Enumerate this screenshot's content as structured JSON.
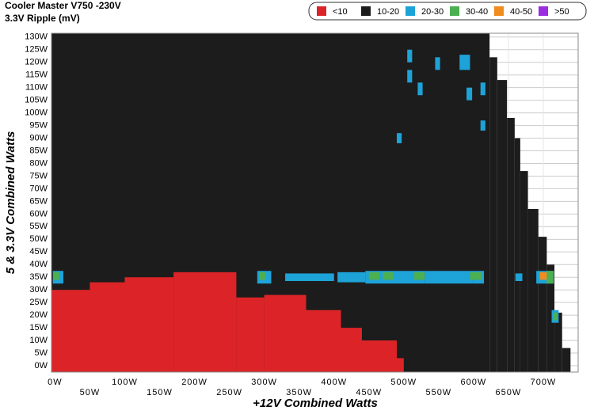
{
  "chart_data": {
    "type": "heatmap",
    "title": "Cooler Master V750 -230V",
    "subtitle": "3.3V Ripple (mV)",
    "x_label": "+12V Combined Watts",
    "y_label": "5 & 3.3V Combined Watts",
    "xlim": [
      -5,
      750
    ],
    "ylim": [
      -2.5,
      131.5
    ],
    "grid": true,
    "xticks": [
      {
        "value": 0,
        "label": "0W"
      },
      {
        "value": 50,
        "label": "50W"
      },
      {
        "value": 100,
        "label": "100W"
      },
      {
        "value": 150,
        "label": "150W"
      },
      {
        "value": 200,
        "label": "200W"
      },
      {
        "value": 250,
        "label": "250W"
      },
      {
        "value": 300,
        "label": "300W"
      },
      {
        "value": 350,
        "label": "350W"
      },
      {
        "value": 400,
        "label": "400W"
      },
      {
        "value": 450,
        "label": "450W"
      },
      {
        "value": 500,
        "label": "500W"
      },
      {
        "value": 550,
        "label": "550W"
      },
      {
        "value": 600,
        "label": "600W"
      },
      {
        "value": 650,
        "label": "650W"
      },
      {
        "value": 700,
        "label": "700W"
      }
    ],
    "yticks": [
      {
        "value": 0,
        "label": "0W"
      },
      {
        "value": 5,
        "label": "5W"
      },
      {
        "value": 10,
        "label": "10W"
      },
      {
        "value": 15,
        "label": "15W"
      },
      {
        "value": 20,
        "label": "20W"
      },
      {
        "value": 25,
        "label": "25W"
      },
      {
        "value": 30,
        "label": "30W"
      },
      {
        "value": 35,
        "label": "35W"
      },
      {
        "value": 40,
        "label": "40W"
      },
      {
        "value": 45,
        "label": "45W"
      },
      {
        "value": 50,
        "label": "50W"
      },
      {
        "value": 55,
        "label": "55W"
      },
      {
        "value": 60,
        "label": "60W"
      },
      {
        "value": 65,
        "label": "65W"
      },
      {
        "value": 70,
        "label": "70W"
      },
      {
        "value": 75,
        "label": "75W"
      },
      {
        "value": 80,
        "label": "80W"
      },
      {
        "value": 85,
        "label": "85W"
      },
      {
        "value": 90,
        "label": "90W"
      },
      {
        "value": 95,
        "label": "95W"
      },
      {
        "value": 100,
        "label": "100W"
      },
      {
        "value": 105,
        "label": "105W"
      },
      {
        "value": 110,
        "label": "110W"
      },
      {
        "value": 115,
        "label": "115W"
      },
      {
        "value": 120,
        "label": "120W"
      },
      {
        "value": 125,
        "label": "125W"
      },
      {
        "value": 130,
        "label": "130W"
      }
    ],
    "series": [
      {
        "name": "10-20",
        "color": "#1c1c1c",
        "rects": [
          [
            -5,
            623,
            -2.5,
            131.5
          ],
          [
            623,
            634,
            -2.5,
            122
          ],
          [
            634,
            648,
            -2.5,
            113
          ],
          [
            648,
            659,
            -2.5,
            98
          ],
          [
            659,
            667,
            -2.5,
            90
          ],
          [
            667,
            678,
            -2.5,
            77
          ],
          [
            678,
            693,
            -2.5,
            62
          ],
          [
            693,
            705,
            -2.5,
            51
          ],
          [
            705,
            716,
            -2.5,
            40
          ],
          [
            716,
            727,
            -2.5,
            21
          ],
          [
            727,
            739,
            -2.5,
            7
          ]
        ]
      },
      {
        "name": "<10",
        "color": "#dc2428",
        "rects": [
          [
            -5,
            50,
            -2.5,
            30
          ],
          [
            50,
            100,
            -2.5,
            33
          ],
          [
            100,
            170,
            -2.5,
            35
          ],
          [
            170,
            260,
            -2.5,
            37
          ],
          [
            260,
            300,
            -2.5,
            27
          ],
          [
            300,
            360,
            -2.5,
            28
          ],
          [
            360,
            410,
            -2.5,
            22
          ],
          [
            410,
            440,
            -2.5,
            15
          ],
          [
            440,
            490,
            -2.5,
            10
          ],
          [
            490,
            500,
            -2.5,
            3
          ]
        ]
      },
      {
        "name": "20-30",
        "color": "#1ea3d8",
        "rects": [
          [
            -3,
            12,
            32.5,
            37.5
          ],
          [
            290,
            310,
            32.5,
            37.5
          ],
          [
            330,
            400,
            33.5,
            36.5
          ],
          [
            405,
            445,
            33,
            37
          ],
          [
            445,
            530,
            32.5,
            37.5
          ],
          [
            530,
            600,
            32.5,
            37.5
          ],
          [
            600,
            615,
            32.5,
            37.5
          ],
          [
            660,
            670,
            33.5,
            36.5
          ],
          [
            690,
            715,
            32.5,
            37.5
          ],
          [
            505,
            512,
            120,
            125
          ],
          [
            505,
            512,
            112,
            117
          ],
          [
            545,
            552,
            117,
            122
          ],
          [
            580,
            595,
            117,
            123
          ],
          [
            590,
            598,
            105,
            110
          ],
          [
            520,
            527,
            107,
            112
          ],
          [
            610,
            617,
            107,
            112
          ],
          [
            610,
            617,
            93,
            97
          ],
          [
            490,
            497,
            88,
            92
          ],
          [
            712,
            722,
            17,
            22
          ]
        ]
      },
      {
        "name": "30-40",
        "color": "#4cb050",
        "rects": [
          [
            -2,
            6,
            34,
            37
          ],
          [
            293,
            302,
            34,
            37
          ],
          [
            450,
            465,
            34,
            37
          ],
          [
            470,
            485,
            34,
            37
          ],
          [
            515,
            530,
            34,
            37
          ],
          [
            595,
            612,
            34,
            37
          ],
          [
            705,
            715,
            32.5,
            37.5
          ],
          [
            714,
            720,
            18,
            21
          ]
        ]
      },
      {
        "name": "40-50",
        "color": "#f08c1e",
        "rects": [
          [
            695,
            705,
            34,
            37
          ]
        ]
      },
      {
        "name": ">50",
        "color": "#9a2ee0",
        "rects": []
      }
    ]
  }
}
